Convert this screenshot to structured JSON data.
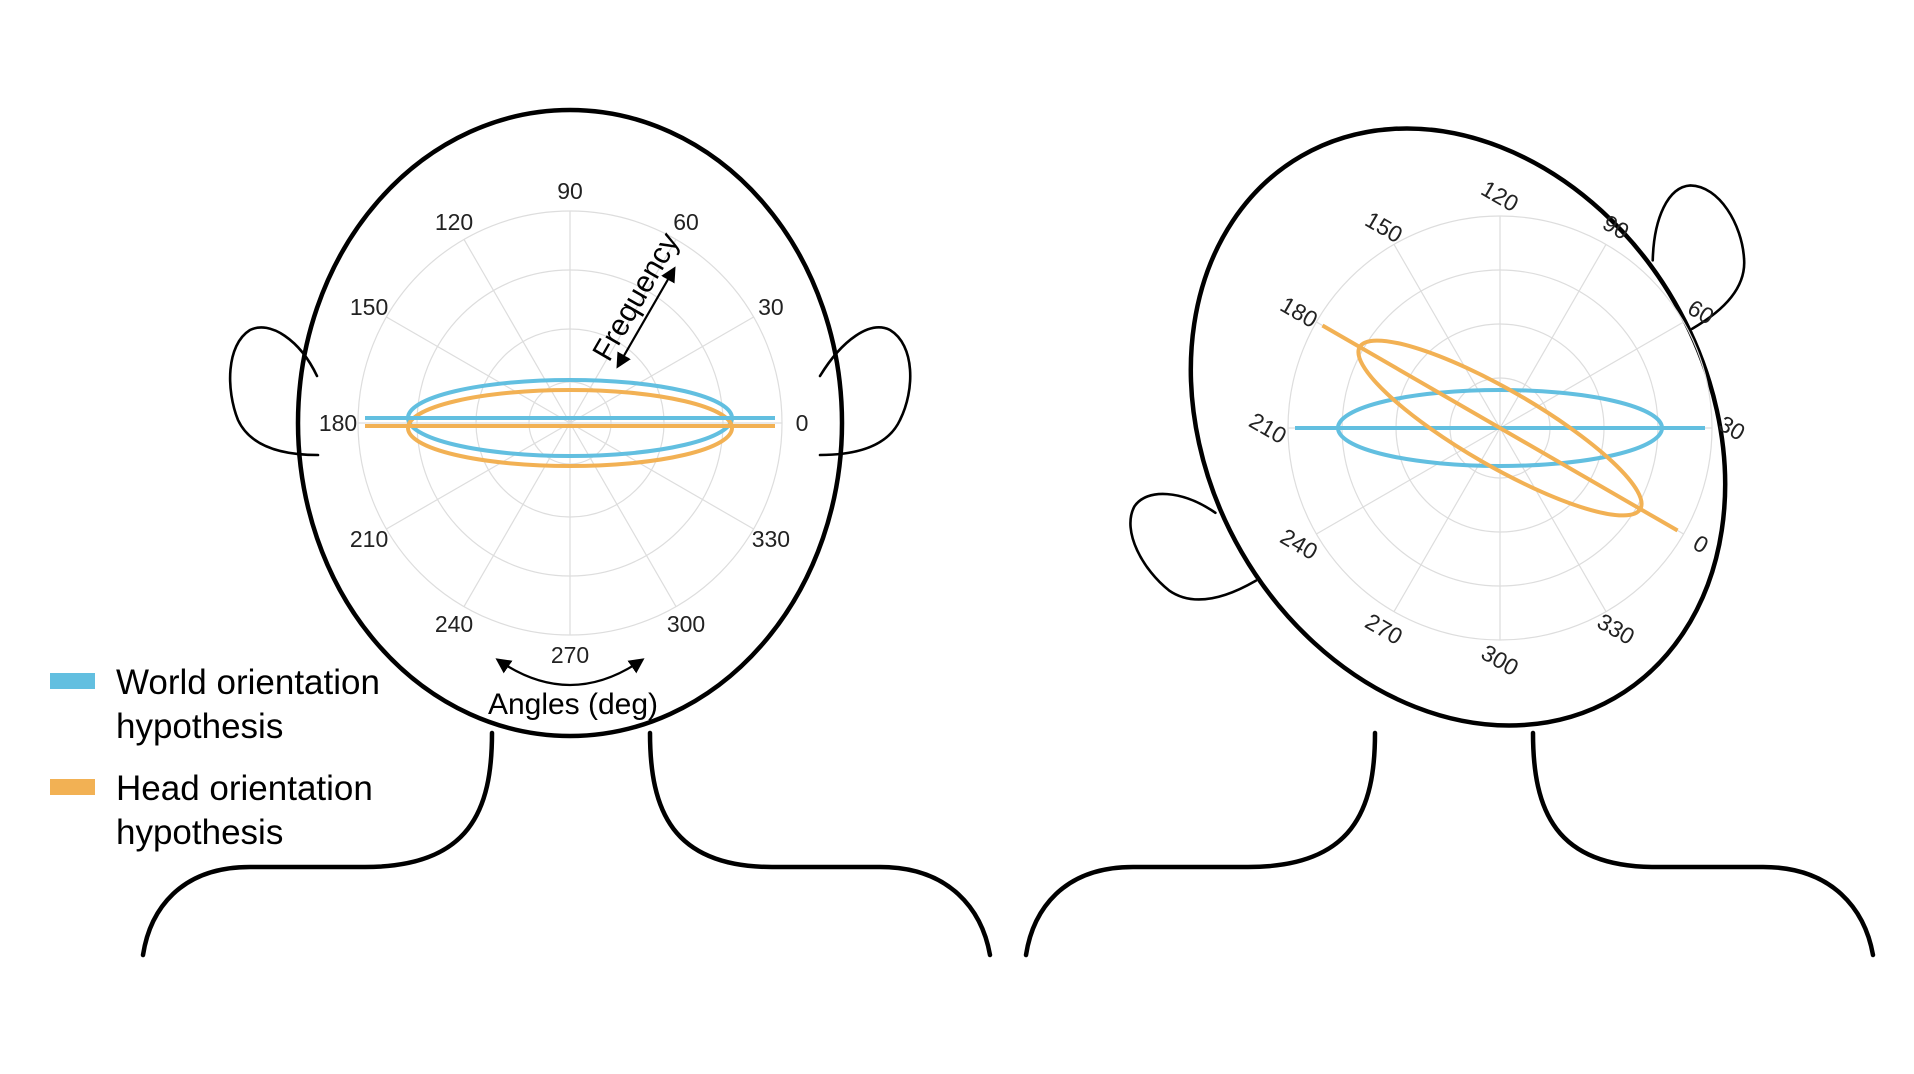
{
  "colors": {
    "world": "#62bfe0",
    "head": "#f2b154"
  },
  "figures": [
    {
      "angle_ticks": [
        "0",
        "30",
        "60",
        "90",
        "120",
        "150",
        "180",
        "210",
        "240",
        "270",
        "300",
        "330"
      ],
      "annotations": {
        "frequency": "Frequency",
        "angles": "Angles (deg)"
      },
      "head_tilt_deg": 0
    },
    {
      "angle_ticks": [
        "0",
        "30",
        "60",
        "90",
        "120",
        "150",
        "180",
        "210",
        "240",
        "270",
        "300",
        "330"
      ],
      "annotations": {
        "frequency": "",
        "angles": ""
      },
      "head_tilt_deg": -30
    }
  ],
  "legend": {
    "items": [
      {
        "line1": "World orientation",
        "line2": "hypothesis",
        "color_key": "world"
      },
      {
        "line1": "Head orientation",
        "line2": "hypothesis",
        "color_key": "head"
      }
    ]
  }
}
